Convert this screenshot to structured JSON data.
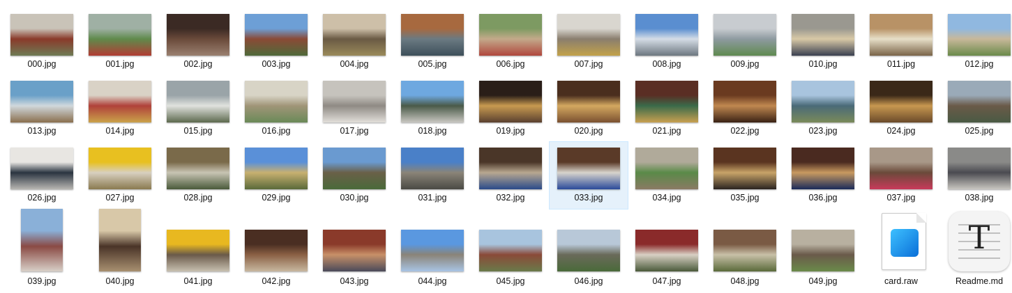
{
  "files": [
    {
      "name": "000.jpg",
      "colors": [
        "#c9c3b8",
        "#8a3a2a",
        "#6e7b55"
      ],
      "icon": "photo-thumbnail"
    },
    {
      "name": "001.jpg",
      "colors": [
        "#9fb0a4",
        "#5f8a4b",
        "#b23c34"
      ],
      "icon": "photo-thumbnail"
    },
    {
      "name": "002.jpg",
      "colors": [
        "#3b2a24",
        "#6a4a3a",
        "#9a8070"
      ],
      "icon": "photo-thumbnail"
    },
    {
      "name": "003.jpg",
      "colors": [
        "#6d9fd6",
        "#8a4a36",
        "#4f6a3a"
      ],
      "icon": "photo-thumbnail"
    },
    {
      "name": "004.jpg",
      "colors": [
        "#cdbfa8",
        "#6a5a44",
        "#9a8a5a"
      ],
      "icon": "photo-thumbnail"
    },
    {
      "name": "005.jpg",
      "colors": [
        "#a7693f",
        "#6b7a82",
        "#3d4f5a"
      ],
      "icon": "photo-thumbnail"
    },
    {
      "name": "006.jpg",
      "colors": [
        "#7d9a62",
        "#c3a98a",
        "#b0473d"
      ],
      "icon": "photo-thumbnail"
    },
    {
      "name": "007.jpg",
      "colors": [
        "#d9d6cf",
        "#8a7e6e",
        "#c2a24a"
      ],
      "icon": "photo-thumbnail"
    },
    {
      "name": "008.jpg",
      "colors": [
        "#5a8ed0",
        "#d5dde6",
        "#6d7780"
      ],
      "icon": "photo-thumbnail"
    },
    {
      "name": "009.jpg",
      "colors": [
        "#c8ccd0",
        "#8e9aa0",
        "#5f8a50"
      ],
      "icon": "photo-thumbnail"
    },
    {
      "name": "010.jpg",
      "colors": [
        "#9a9890",
        "#d8c9a6",
        "#3a4050"
      ],
      "icon": "photo-thumbnail"
    },
    {
      "name": "011.jpg",
      "colors": [
        "#b89266",
        "#e7dfc8",
        "#7a6448"
      ],
      "icon": "photo-thumbnail"
    },
    {
      "name": "012.jpg",
      "colors": [
        "#90b8e0",
        "#c8b89a",
        "#6a8a4a"
      ],
      "icon": "photo-thumbnail"
    },
    {
      "name": "013.jpg",
      "colors": [
        "#6aa0c8",
        "#d0d8dc",
        "#8a6f4e"
      ],
      "icon": "photo-thumbnail"
    },
    {
      "name": "014.jpg",
      "colors": [
        "#d9d2c6",
        "#b0413a",
        "#caa24a"
      ],
      "icon": "photo-thumbnail"
    },
    {
      "name": "015.jpg",
      "colors": [
        "#9aa4a8",
        "#e0e2de",
        "#5d6a4e"
      ],
      "icon": "photo-thumbnail"
    },
    {
      "name": "016.jpg",
      "colors": [
        "#d8d4c6",
        "#a09578",
        "#6a8a58"
      ],
      "icon": "photo-thumbnail"
    },
    {
      "name": "017.jpg",
      "colors": [
        "#c6c3bd",
        "#8f8a84",
        "#e2dfda"
      ],
      "icon": "photo-thumbnail"
    },
    {
      "name": "018.jpg",
      "colors": [
        "#6ea8e0",
        "#4a5a48",
        "#c8c6c0"
      ],
      "icon": "photo-thumbnail"
    },
    {
      "name": "019.jpg",
      "colors": [
        "#2a1e18",
        "#c89a50",
        "#5a4030"
      ],
      "icon": "photo-thumbnail"
    },
    {
      "name": "020.jpg",
      "colors": [
        "#4a2e1e",
        "#d4a860",
        "#7a5030"
      ],
      "icon": "photo-thumbnail"
    },
    {
      "name": "021.jpg",
      "colors": [
        "#5a2e24",
        "#3a6a4a",
        "#c8a050"
      ],
      "icon": "photo-thumbnail"
    },
    {
      "name": "022.jpg",
      "colors": [
        "#6a3a20",
        "#c08850",
        "#3a2214"
      ],
      "icon": "photo-thumbnail"
    },
    {
      "name": "023.jpg",
      "colors": [
        "#a8c4de",
        "#4a6a78",
        "#7a8a5a"
      ],
      "icon": "photo-thumbnail"
    },
    {
      "name": "024.jpg",
      "colors": [
        "#3a2818",
        "#c89850",
        "#6a4a2a"
      ],
      "icon": "photo-thumbnail"
    },
    {
      "name": "025.jpg",
      "colors": [
        "#9aaab8",
        "#6a5a48",
        "#4a5a44"
      ],
      "icon": "photo-thumbnail"
    },
    {
      "name": "026.jpg",
      "colors": [
        "#e8e6e2",
        "#2a3440",
        "#b8b6b2"
      ],
      "icon": "photo-thumbnail"
    },
    {
      "name": "027.jpg",
      "colors": [
        "#e8c020",
        "#d8d0c0",
        "#8a7a50"
      ],
      "icon": "photo-thumbnail"
    },
    {
      "name": "028.jpg",
      "colors": [
        "#7a6a4a",
        "#c8c4b4",
        "#4a5a3a"
      ],
      "icon": "photo-thumbnail"
    },
    {
      "name": "029.jpg",
      "colors": [
        "#5a90d8",
        "#c8b070",
        "#5a6a3a"
      ],
      "icon": "photo-thumbnail"
    },
    {
      "name": "030.jpg",
      "colors": [
        "#6a9ad0",
        "#6a6048",
        "#4a6a3a"
      ],
      "icon": "photo-thumbnail"
    },
    {
      "name": "031.jpg",
      "colors": [
        "#4a80c8",
        "#8a8478",
        "#4a4a44"
      ],
      "icon": "photo-thumbnail"
    },
    {
      "name": "032.jpg",
      "colors": [
        "#4a3628",
        "#b8a890",
        "#2a4a8a"
      ],
      "icon": "photo-thumbnail"
    },
    {
      "name": "033.jpg",
      "colors": [
        "#5a3a28",
        "#d8d4cc",
        "#2a4a9a"
      ],
      "icon": "photo-thumbnail"
    },
    {
      "name": "034.jpg",
      "colors": [
        "#b0aa9a",
        "#5a8a48",
        "#8a7a64"
      ],
      "icon": "photo-thumbnail"
    },
    {
      "name": "035.jpg",
      "colors": [
        "#5a3420",
        "#c8a468",
        "#2a2420"
      ],
      "icon": "photo-thumbnail"
    },
    {
      "name": "036.jpg",
      "colors": [
        "#4a2a20",
        "#c89a60",
        "#1a2a5a"
      ],
      "icon": "photo-thumbnail"
    },
    {
      "name": "037.jpg",
      "colors": [
        "#a89888",
        "#6a4a3a",
        "#c83a5a"
      ],
      "icon": "photo-thumbnail"
    },
    {
      "name": "038.jpg",
      "colors": [
        "#8a8a88",
        "#4a4a50",
        "#c8c6c0"
      ],
      "icon": "photo-thumbnail"
    },
    {
      "name": "039.jpg",
      "colors": [
        "#8ab0d8",
        "#8a4a44",
        "#d8d0c8"
      ],
      "icon": "photo-thumbnail"
    },
    {
      "name": "040.jpg",
      "colors": [
        "#d8c8a8",
        "#4a3428",
        "#a89070"
      ],
      "icon": "photo-thumbnail"
    },
    {
      "name": "041.jpg",
      "colors": [
        "#e8b820",
        "#6a5a4a",
        "#c8c0b0"
      ],
      "icon": "photo-thumbnail"
    },
    {
      "name": "042.jpg",
      "colors": [
        "#4a2e22",
        "#8a6044",
        "#c8b8a0"
      ],
      "icon": "photo-thumbnail"
    },
    {
      "name": "043.jpg",
      "colors": [
        "#8a3a2a",
        "#c89068",
        "#4a4a5a"
      ],
      "icon": "photo-thumbnail"
    },
    {
      "name": "044.jpg",
      "colors": [
        "#5a98e0",
        "#8a8478",
        "#a8c4e4"
      ],
      "icon": "photo-thumbnail"
    },
    {
      "name": "045.jpg",
      "colors": [
        "#a8c4de",
        "#8a4a38",
        "#6a7a4a"
      ],
      "icon": "photo-thumbnail"
    },
    {
      "name": "046.jpg",
      "colors": [
        "#b8c8d8",
        "#6a6a5a",
        "#4a6a3a"
      ],
      "icon": "photo-thumbnail"
    },
    {
      "name": "047.jpg",
      "colors": [
        "#8a2a2a",
        "#d8d0c4",
        "#4a5a3a"
      ],
      "icon": "photo-thumbnail"
    },
    {
      "name": "048.jpg",
      "colors": [
        "#7a5a44",
        "#c8c0a8",
        "#5a6a3a"
      ],
      "icon": "photo-thumbnail"
    },
    {
      "name": "049.jpg",
      "colors": [
        "#b8b0a0",
        "#6a5a4a",
        "#6a8a4a"
      ],
      "icon": "photo-thumbnail"
    },
    {
      "name": "card.raw",
      "icon": "raw-image-file-icon"
    },
    {
      "name": "Readme.md",
      "icon": "markdown-file-icon"
    }
  ],
  "selected": "033.jpg"
}
